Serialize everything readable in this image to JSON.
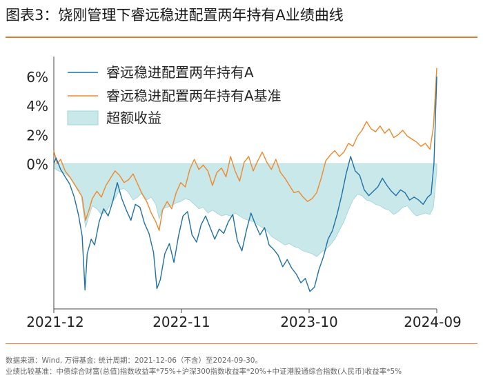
{
  "header": {
    "title": "图表3：饶刚管理下睿远稳进配置两年持有A业绩曲线"
  },
  "footer": {
    "source": "数据来源：Wind, 万得基金; 统计周期：2021-12-06（不含）至2024-09-30。",
    "benchmark": "业绩比较基准：中债综合财富(总值)指数收益率*75%+沪深300指数收益率*20%+中证港股通综合指数(人民币)收益率*5%"
  },
  "colors": {
    "fund": "#1f6fa3",
    "benchmark": "#f0882a",
    "excess_fill": "#c9e8ea",
    "excess_stroke": "#9fd4d8",
    "rule": "#e07a2b"
  },
  "chart_data": {
    "type": "line",
    "x_ticks": [
      "2021-12",
      "2022-11",
      "2023-10",
      "2024-09"
    ],
    "ylim": [
      -10,
      7
    ],
    "y_ticks": [
      "6%",
      "4%",
      "2%",
      "0%"
    ],
    "y_tick_values": [
      6,
      4,
      2,
      0
    ],
    "legend": [
      {
        "name": "睿远稳进配置两年持有A",
        "kind": "line"
      },
      {
        "name": "睿远稳进配置两年持有A基准",
        "kind": "line"
      },
      {
        "name": "超额收益",
        "kind": "area"
      }
    ],
    "legend_position": "top-left",
    "x_index_range": [
      0,
      33.8
    ],
    "series": [
      {
        "name": "睿远稳进配置两年持有A",
        "points": [
          [
            0,
            0
          ],
          [
            0.2,
            0.4
          ],
          [
            0.6,
            -0.4
          ],
          [
            1.0,
            -0.9
          ],
          [
            1.4,
            -1.4
          ],
          [
            1.8,
            -2.3
          ],
          [
            2.2,
            -3.6
          ],
          [
            2.5,
            -5.0
          ],
          [
            2.75,
            -8.7
          ],
          [
            2.95,
            -6.2
          ],
          [
            3.3,
            -5.2
          ],
          [
            3.6,
            -5.6
          ],
          [
            4.0,
            -4.0
          ],
          [
            4.4,
            -3.1
          ],
          [
            4.8,
            -3.6
          ],
          [
            5.2,
            -2.6
          ],
          [
            5.6,
            -1.3
          ],
          [
            6.0,
            -2.4
          ],
          [
            6.4,
            -3.2
          ],
          [
            6.8,
            -3.9
          ],
          [
            7.2,
            -2.8
          ],
          [
            7.6,
            -3.0
          ],
          [
            8.0,
            -4.1
          ],
          [
            8.4,
            -4.8
          ],
          [
            8.8,
            -6.1
          ],
          [
            9.1,
            -8.6
          ],
          [
            9.4,
            -8.0
          ],
          [
            9.8,
            -6.2
          ],
          [
            10.2,
            -5.5
          ],
          [
            10.6,
            -6.8
          ],
          [
            11.0,
            -5.0
          ],
          [
            11.4,
            -3.6
          ],
          [
            11.8,
            -3.3
          ],
          [
            12.2,
            -4.9
          ],
          [
            12.6,
            -5.4
          ],
          [
            13.0,
            -4.2
          ],
          [
            13.4,
            -3.6
          ],
          [
            13.8,
            -4.4
          ],
          [
            14.2,
            -5.2
          ],
          [
            14.6,
            -4.5
          ],
          [
            15.0,
            -4.8
          ],
          [
            15.4,
            -4.0
          ],
          [
            15.8,
            -3.5
          ],
          [
            16.2,
            -5.3
          ],
          [
            16.6,
            -6.0
          ],
          [
            17.0,
            -4.6
          ],
          [
            17.4,
            -3.4
          ],
          [
            17.8,
            -4.2
          ],
          [
            18.2,
            -4.9
          ],
          [
            18.6,
            -4.4
          ],
          [
            19.0,
            -5.6
          ],
          [
            19.4,
            -5.9
          ],
          [
            19.8,
            -6.3
          ],
          [
            20.2,
            -7.1
          ],
          [
            20.6,
            -6.6
          ],
          [
            21.0,
            -7.2
          ],
          [
            21.4,
            -7.6
          ],
          [
            21.8,
            -8.2
          ],
          [
            22.2,
            -7.9
          ],
          [
            22.6,
            -8.8
          ],
          [
            23.0,
            -8.5
          ],
          [
            23.4,
            -7.3
          ],
          [
            23.8,
            -6.4
          ],
          [
            24.2,
            -5.2
          ],
          [
            24.6,
            -4.6
          ],
          [
            25.0,
            -3.5
          ],
          [
            25.4,
            -2.2
          ],
          [
            25.8,
            -0.7
          ],
          [
            26.2,
            0.5
          ],
          [
            26.6,
            -0.5
          ],
          [
            27.0,
            -0.8
          ],
          [
            27.4,
            -1.8
          ],
          [
            27.8,
            -2.2
          ],
          [
            28.2,
            -1.9
          ],
          [
            28.6,
            -1.6
          ],
          [
            29.0,
            -1.0
          ],
          [
            29.4,
            -1.5
          ],
          [
            29.8,
            -1.9
          ],
          [
            30.2,
            -2.2
          ],
          [
            30.6,
            -1.8
          ],
          [
            31.0,
            -2.0
          ],
          [
            31.4,
            -2.5
          ],
          [
            31.8,
            -2.3
          ],
          [
            32.2,
            -2.5
          ],
          [
            32.6,
            -2.8
          ],
          [
            33.0,
            -2.3
          ],
          [
            33.3,
            -2.1
          ],
          [
            33.55,
            0.0
          ],
          [
            33.8,
            6.0
          ]
        ]
      },
      {
        "name": "睿远稳进配置两年持有A基准",
        "points": [
          [
            0,
            0.9
          ],
          [
            0.3,
            0.0
          ],
          [
            0.6,
            0.3
          ],
          [
            1.0,
            -0.5
          ],
          [
            1.4,
            -0.9
          ],
          [
            1.8,
            -1.4
          ],
          [
            2.2,
            -1.9
          ],
          [
            2.5,
            -2.3
          ],
          [
            2.8,
            -3.9
          ],
          [
            3.1,
            -3.2
          ],
          [
            3.4,
            -2.4
          ],
          [
            3.8,
            -1.9
          ],
          [
            4.2,
            -2.3
          ],
          [
            4.6,
            -1.5
          ],
          [
            5.0,
            -1.0
          ],
          [
            5.4,
            -0.5
          ],
          [
            5.8,
            -0.8
          ],
          [
            6.2,
            -1.3
          ],
          [
            6.6,
            -1.1
          ],
          [
            7.0,
            -0.7
          ],
          [
            7.4,
            -1.4
          ],
          [
            7.8,
            -2.1
          ],
          [
            8.2,
            -2.6
          ],
          [
            8.6,
            -3.4
          ],
          [
            9.0,
            -4.0
          ],
          [
            9.3,
            -4.6
          ],
          [
            9.6,
            -3.2
          ],
          [
            10.0,
            -2.6
          ],
          [
            10.4,
            -3.1
          ],
          [
            10.8,
            -2.0
          ],
          [
            11.2,
            -1.3
          ],
          [
            11.6,
            -1.6
          ],
          [
            12.0,
            -0.4
          ],
          [
            12.4,
            0.3
          ],
          [
            12.8,
            -0.4
          ],
          [
            13.2,
            -0.1
          ],
          [
            13.6,
            -0.5
          ],
          [
            14.0,
            -1.5
          ],
          [
            14.4,
            -0.6
          ],
          [
            14.8,
            -0.3
          ],
          [
            15.2,
            -0.9
          ],
          [
            15.6,
            0.5
          ],
          [
            16.0,
            -0.5
          ],
          [
            16.4,
            -1.2
          ],
          [
            16.8,
            0.1
          ],
          [
            17.2,
            0.5
          ],
          [
            17.6,
            -0.5
          ],
          [
            18.0,
            0.2
          ],
          [
            18.4,
            0.8
          ],
          [
            18.8,
            0.1
          ],
          [
            19.2,
            -0.4
          ],
          [
            19.6,
            0.3
          ],
          [
            20.0,
            -0.6
          ],
          [
            20.4,
            -1.0
          ],
          [
            20.8,
            -1.5
          ],
          [
            21.2,
            -2.0
          ],
          [
            21.6,
            -1.9
          ],
          [
            22.0,
            -2.3
          ],
          [
            22.4,
            -2.6
          ],
          [
            22.8,
            -2.4
          ],
          [
            23.2,
            -2.0
          ],
          [
            23.6,
            -1.0
          ],
          [
            24.0,
            0.2
          ],
          [
            24.4,
            0.6
          ],
          [
            24.8,
            0.9
          ],
          [
            25.2,
            0.5
          ],
          [
            25.6,
            0.8
          ],
          [
            26.0,
            1.4
          ],
          [
            26.4,
            1.2
          ],
          [
            26.8,
            1.9
          ],
          [
            27.2,
            2.3
          ],
          [
            27.6,
            2.9
          ],
          [
            28.0,
            2.4
          ],
          [
            28.4,
            2.2
          ],
          [
            28.8,
            2.6
          ],
          [
            29.2,
            2.1
          ],
          [
            29.6,
            2.4
          ],
          [
            30.0,
            1.8
          ],
          [
            30.4,
            2.0
          ],
          [
            30.8,
            2.3
          ],
          [
            31.2,
            1.9
          ],
          [
            31.6,
            1.7
          ],
          [
            32.0,
            1.5
          ],
          [
            32.4,
            1.2
          ],
          [
            32.8,
            1.4
          ],
          [
            33.2,
            1.0
          ],
          [
            33.5,
            2.5
          ],
          [
            33.8,
            6.6
          ]
        ]
      },
      {
        "name": "超额收益",
        "points": [
          [
            0,
            -0.3
          ],
          [
            0.4,
            -0.5
          ],
          [
            0.8,
            -0.6
          ],
          [
            1.2,
            -0.8
          ],
          [
            1.6,
            -1.1
          ],
          [
            2.0,
            -1.6
          ],
          [
            2.4,
            -2.0
          ],
          [
            2.6,
            -3.3
          ],
          [
            2.8,
            -4.4
          ],
          [
            3.1,
            -3.6
          ],
          [
            3.4,
            -2.9
          ],
          [
            3.8,
            -3.1
          ],
          [
            4.2,
            -3.5
          ],
          [
            4.6,
            -3.3
          ],
          [
            5.0,
            -2.8
          ],
          [
            5.4,
            -2.4
          ],
          [
            5.8,
            -1.8
          ],
          [
            6.2,
            -1.7
          ],
          [
            6.6,
            -2.0
          ],
          [
            7.0,
            -2.5
          ],
          [
            7.4,
            -2.3
          ],
          [
            7.8,
            -2.0
          ],
          [
            8.2,
            -2.5
          ],
          [
            8.6,
            -2.3
          ],
          [
            9.0,
            -2.8
          ],
          [
            9.3,
            -3.8
          ],
          [
            9.6,
            -3.1
          ],
          [
            10.0,
            -3.0
          ],
          [
            10.4,
            -2.9
          ],
          [
            10.8,
            -2.7
          ],
          [
            11.2,
            -2.6
          ],
          [
            11.6,
            -2.4
          ],
          [
            12.0,
            -2.5
          ],
          [
            12.4,
            -2.8
          ],
          [
            12.8,
            -3.1
          ],
          [
            13.2,
            -3.0
          ],
          [
            13.6,
            -3.4
          ],
          [
            14.0,
            -3.2
          ],
          [
            14.4,
            -3.4
          ],
          [
            14.8,
            -3.6
          ],
          [
            15.2,
            -3.5
          ],
          [
            15.6,
            -3.6
          ],
          [
            16.0,
            -3.4
          ],
          [
            16.4,
            -3.6
          ],
          [
            16.8,
            -3.8
          ],
          [
            17.2,
            -3.9
          ],
          [
            17.6,
            -4.0
          ],
          [
            18.0,
            -4.2
          ],
          [
            18.4,
            -4.4
          ],
          [
            18.8,
            -4.6
          ],
          [
            19.2,
            -5.0
          ],
          [
            19.6,
            -5.2
          ],
          [
            20.0,
            -5.4
          ],
          [
            20.4,
            -5.6
          ],
          [
            20.8,
            -5.5
          ],
          [
            21.2,
            -5.7
          ],
          [
            21.6,
            -5.8
          ],
          [
            22.0,
            -6.0
          ],
          [
            22.4,
            -6.1
          ],
          [
            22.8,
            -6.2
          ],
          [
            23.2,
            -6.4
          ],
          [
            23.6,
            -6.1
          ],
          [
            24.0,
            -5.9
          ],
          [
            24.4,
            -5.6
          ],
          [
            24.8,
            -5.2
          ],
          [
            25.2,
            -4.6
          ],
          [
            25.6,
            -4.0
          ],
          [
            26.0,
            -3.2
          ],
          [
            26.4,
            -2.5
          ],
          [
            26.8,
            -2.1
          ],
          [
            27.2,
            -2.2
          ],
          [
            27.6,
            -2.5
          ],
          [
            28.0,
            -2.6
          ],
          [
            28.4,
            -2.8
          ],
          [
            28.8,
            -2.9
          ],
          [
            29.2,
            -3.1
          ],
          [
            29.6,
            -3.2
          ],
          [
            30.0,
            -3.5
          ],
          [
            30.4,
            -3.3
          ],
          [
            30.8,
            -3.0
          ],
          [
            31.2,
            -2.9
          ],
          [
            31.6,
            -3.3
          ],
          [
            32.0,
            -3.6
          ],
          [
            32.4,
            -3.5
          ],
          [
            32.8,
            -3.4
          ],
          [
            33.2,
            -3.5
          ],
          [
            33.5,
            -3.0
          ],
          [
            33.8,
            -0.5
          ]
        ]
      }
    ]
  }
}
